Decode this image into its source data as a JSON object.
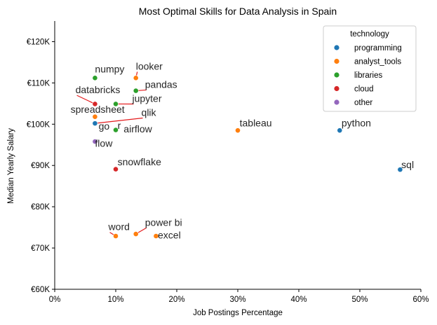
{
  "chart_data": {
    "type": "scatter",
    "title": "Most Optimal Skills for Data Analysis in Spain",
    "xlabel": "Job Postings Percentage",
    "ylabel": "Median Yearly Salary",
    "xlim": [
      0,
      60
    ],
    "ylim": [
      60000,
      125000
    ],
    "x_ticks": [
      {
        "value": 0,
        "label": "0%"
      },
      {
        "value": 10,
        "label": "10%"
      },
      {
        "value": 20,
        "label": "20%"
      },
      {
        "value": 30,
        "label": "30%"
      },
      {
        "value": 40,
        "label": "40%"
      },
      {
        "value": 50,
        "label": "50%"
      },
      {
        "value": 60,
        "label": "60%"
      }
    ],
    "y_ticks": [
      {
        "value": 60000,
        "label": "€60K"
      },
      {
        "value": 70000,
        "label": "€70K"
      },
      {
        "value": 80000,
        "label": "€80K"
      },
      {
        "value": 90000,
        "label": "€90K"
      },
      {
        "value": 100000,
        "label": "€100K"
      },
      {
        "value": 110000,
        "label": "€110K"
      },
      {
        "value": 120000,
        "label": "€120K"
      }
    ],
    "grid": false,
    "legend": {
      "title": "technology",
      "placement": "top-right",
      "entries": [
        {
          "name": "programming",
          "color": "#1f77b4"
        },
        {
          "name": "analyst_tools",
          "color": "#ff7f0e"
        },
        {
          "name": "libraries",
          "color": "#2ca02c"
        },
        {
          "name": "cloud",
          "color": "#d62728"
        },
        {
          "name": "other",
          "color": "#9467bd"
        }
      ]
    },
    "points": [
      {
        "skill": "sql",
        "technology": "programming",
        "x": 56.6,
        "y": 89000
      },
      {
        "skill": "python",
        "technology": "programming",
        "x": 46.7,
        "y": 98500
      },
      {
        "skill": "tableau",
        "technology": "analyst_tools",
        "x": 30.0,
        "y": 98500
      },
      {
        "skill": "numpy",
        "technology": "libraries",
        "x": 6.6,
        "y": 111200
      },
      {
        "skill": "looker",
        "technology": "analyst_tools",
        "x": 13.3,
        "y": 111200
      },
      {
        "skill": "pandas",
        "technology": "libraries",
        "x": 13.3,
        "y": 108100
      },
      {
        "skill": "databricks",
        "technology": "cloud",
        "x": 6.6,
        "y": 104900
      },
      {
        "skill": "jupyter",
        "technology": "libraries",
        "x": 10.0,
        "y": 104900
      },
      {
        "skill": "spreadsheet",
        "technology": "analyst_tools",
        "x": 6.6,
        "y": 101800
      },
      {
        "skill": "qlik",
        "technology": "analyst_tools",
        "x": 6.6,
        "y": 100200
      },
      {
        "skill": "go",
        "technology": "programming",
        "x": 6.6,
        "y": 100200
      },
      {
        "skill": "r",
        "technology": "programming",
        "x": 10.0,
        "y": 98600
      },
      {
        "skill": "airflow",
        "technology": "libraries",
        "x": 10.0,
        "y": 98600
      },
      {
        "skill": "flow",
        "technology": "other",
        "x": 6.6,
        "y": 95800
      },
      {
        "skill": "snowflake",
        "technology": "cloud",
        "x": 10.0,
        "y": 89100
      },
      {
        "skill": "word",
        "technology": "analyst_tools",
        "x": 10.0,
        "y": 72900
      },
      {
        "skill": "power bi",
        "technology": "analyst_tools",
        "x": 13.3,
        "y": 73400
      },
      {
        "skill": "excel",
        "technology": "analyst_tools",
        "x": 16.6,
        "y": 72900
      }
    ],
    "labels": [
      {
        "text": "sql",
        "x": 56.8,
        "y": 89400,
        "anchor": "start"
      },
      {
        "text": "python",
        "x": 47.0,
        "y": 99500,
        "anchor": "start"
      },
      {
        "text": "tableau",
        "x": 30.3,
        "y": 99500,
        "anchor": "start"
      },
      {
        "text": "numpy",
        "x": 6.6,
        "y": 112500,
        "anchor": "start"
      },
      {
        "text": "looker",
        "x": 13.3,
        "y": 113200,
        "anchor": "start",
        "line_to": 0
      },
      {
        "text": "pandas",
        "x": 14.8,
        "y": 108800,
        "anchor": "start",
        "line_to": 0
      },
      {
        "text": "databricks",
        "x": 3.4,
        "y": 107500,
        "anchor": "start",
        "line_to": 0
      },
      {
        "text": "jupyter",
        "x": 12.7,
        "y": 105400,
        "anchor": "start",
        "line_to": 0
      },
      {
        "text": "spreadsheet",
        "x": 2.6,
        "y": 102800,
        "anchor": "start"
      },
      {
        "text": "qlik",
        "x": 14.2,
        "y": 102000,
        "anchor": "start",
        "line_to": 0
      },
      {
        "text": "go",
        "x": 7.2,
        "y": 98700,
        "anchor": "start"
      },
      {
        "text": "r",
        "x": 10.3,
        "y": 98900,
        "anchor": "start"
      },
      {
        "text": "airflow",
        "x": 11.3,
        "y": 98000,
        "anchor": "start"
      },
      {
        "text": "flow",
        "x": 6.6,
        "y": 94500,
        "anchor": "start"
      },
      {
        "text": "snowflake",
        "x": 10.3,
        "y": 90000,
        "anchor": "start"
      },
      {
        "text": "word",
        "x": 8.8,
        "y": 74300,
        "anchor": "start",
        "line_to": 0
      },
      {
        "text": "power bi",
        "x": 14.8,
        "y": 75400,
        "anchor": "start",
        "line_to": 0
      },
      {
        "text": "excel",
        "x": 16.9,
        "y": 72300,
        "anchor": "start"
      }
    ]
  }
}
